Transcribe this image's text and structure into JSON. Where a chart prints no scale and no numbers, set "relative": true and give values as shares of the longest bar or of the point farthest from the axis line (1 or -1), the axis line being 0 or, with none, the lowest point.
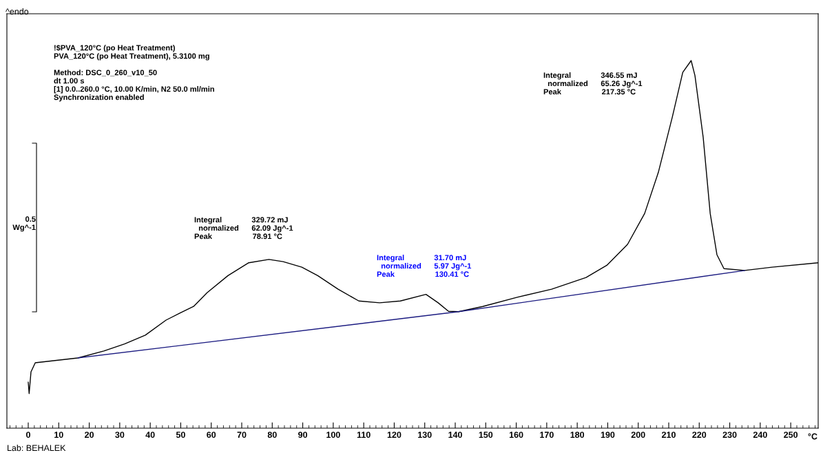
{
  "chart_data": {
    "type": "line",
    "relative": true,
    "xlabel": "°C",
    "xlim": [
      -7,
      259
    ],
    "xticks": [
      0,
      10,
      20,
      30,
      40,
      50,
      60,
      70,
      80,
      90,
      100,
      110,
      120,
      130,
      140,
      150,
      160,
      170,
      180,
      190,
      200,
      210,
      220,
      230,
      240,
      250
    ],
    "grid": false,
    "legend": false,
    "marker": "none",
    "line_style": "solid",
    "series": [
      {
        "color": "#000000",
        "x": [
          0,
          0.3,
          0.9,
          2.3,
          6.8,
          16.3,
          24.8,
          31.6,
          38.4,
          45.2,
          49.7,
          54.2,
          58.7,
          65.5,
          72.3,
          78.91,
          83.6,
          89.7,
          94.9,
          101.6,
          108.4,
          115.2,
          122,
          130.41,
          134.4,
          137.8,
          141.1,
          149,
          160.3,
          171.6,
          182.9,
          189.7,
          196.5,
          202.1,
          206.6,
          211.2,
          214.6,
          217.35,
          218.6,
          221.3,
          223.6,
          225.8,
          228.1,
          234.9,
          243.9,
          259
        ],
        "values": [
          0.125,
          0.094,
          0.153,
          0.178,
          0.182,
          0.191,
          0.21,
          0.229,
          0.253,
          0.294,
          0.313,
          0.331,
          0.369,
          0.415,
          0.45,
          0.459,
          0.453,
          0.438,
          0.415,
          0.378,
          0.346,
          0.341,
          0.346,
          0.364,
          0.341,
          0.318,
          0.317,
          0.331,
          0.356,
          0.378,
          0.41,
          0.443,
          0.5,
          0.584,
          0.696,
          0.847,
          0.968,
          1,
          0.959,
          0.791,
          0.584,
          0.472,
          0.434,
          0.429,
          0.438,
          0.45
        ]
      },
      {
        "color": "#1a1a80",
        "x": [
          16.3,
          141.1,
          234.9
        ],
        "values": [
          0.191,
          0.317,
          0.429
        ]
      }
    ],
    "annotations": [
      "^endo",
      "!$PVA_120°C (po Heat Treatment)\nPVA_120°C (po Heat Treatment), 5.3100 mg\n\nMethod: DSC_0_260_v10_50\ndt 1.00 s\n[1] 0.0..260.0 °C, 10.00 K/min, N2 50.0 ml/min\nSynchronization enabled",
      "0.5\nWg^-1",
      "Integral              329.72 mJ\n  normalized      62.09 Jg^-1\nPeak                   78.91 °C",
      "Integral              31.70 mJ\n  normalized      5.97 Jg^-1\nPeak                   130.41 °C",
      "Integral              346.55 mJ\n  normalized      65.26 Jg^-1\nPeak                   217.35 °C",
      "Lab: BEHALEK"
    ]
  }
}
